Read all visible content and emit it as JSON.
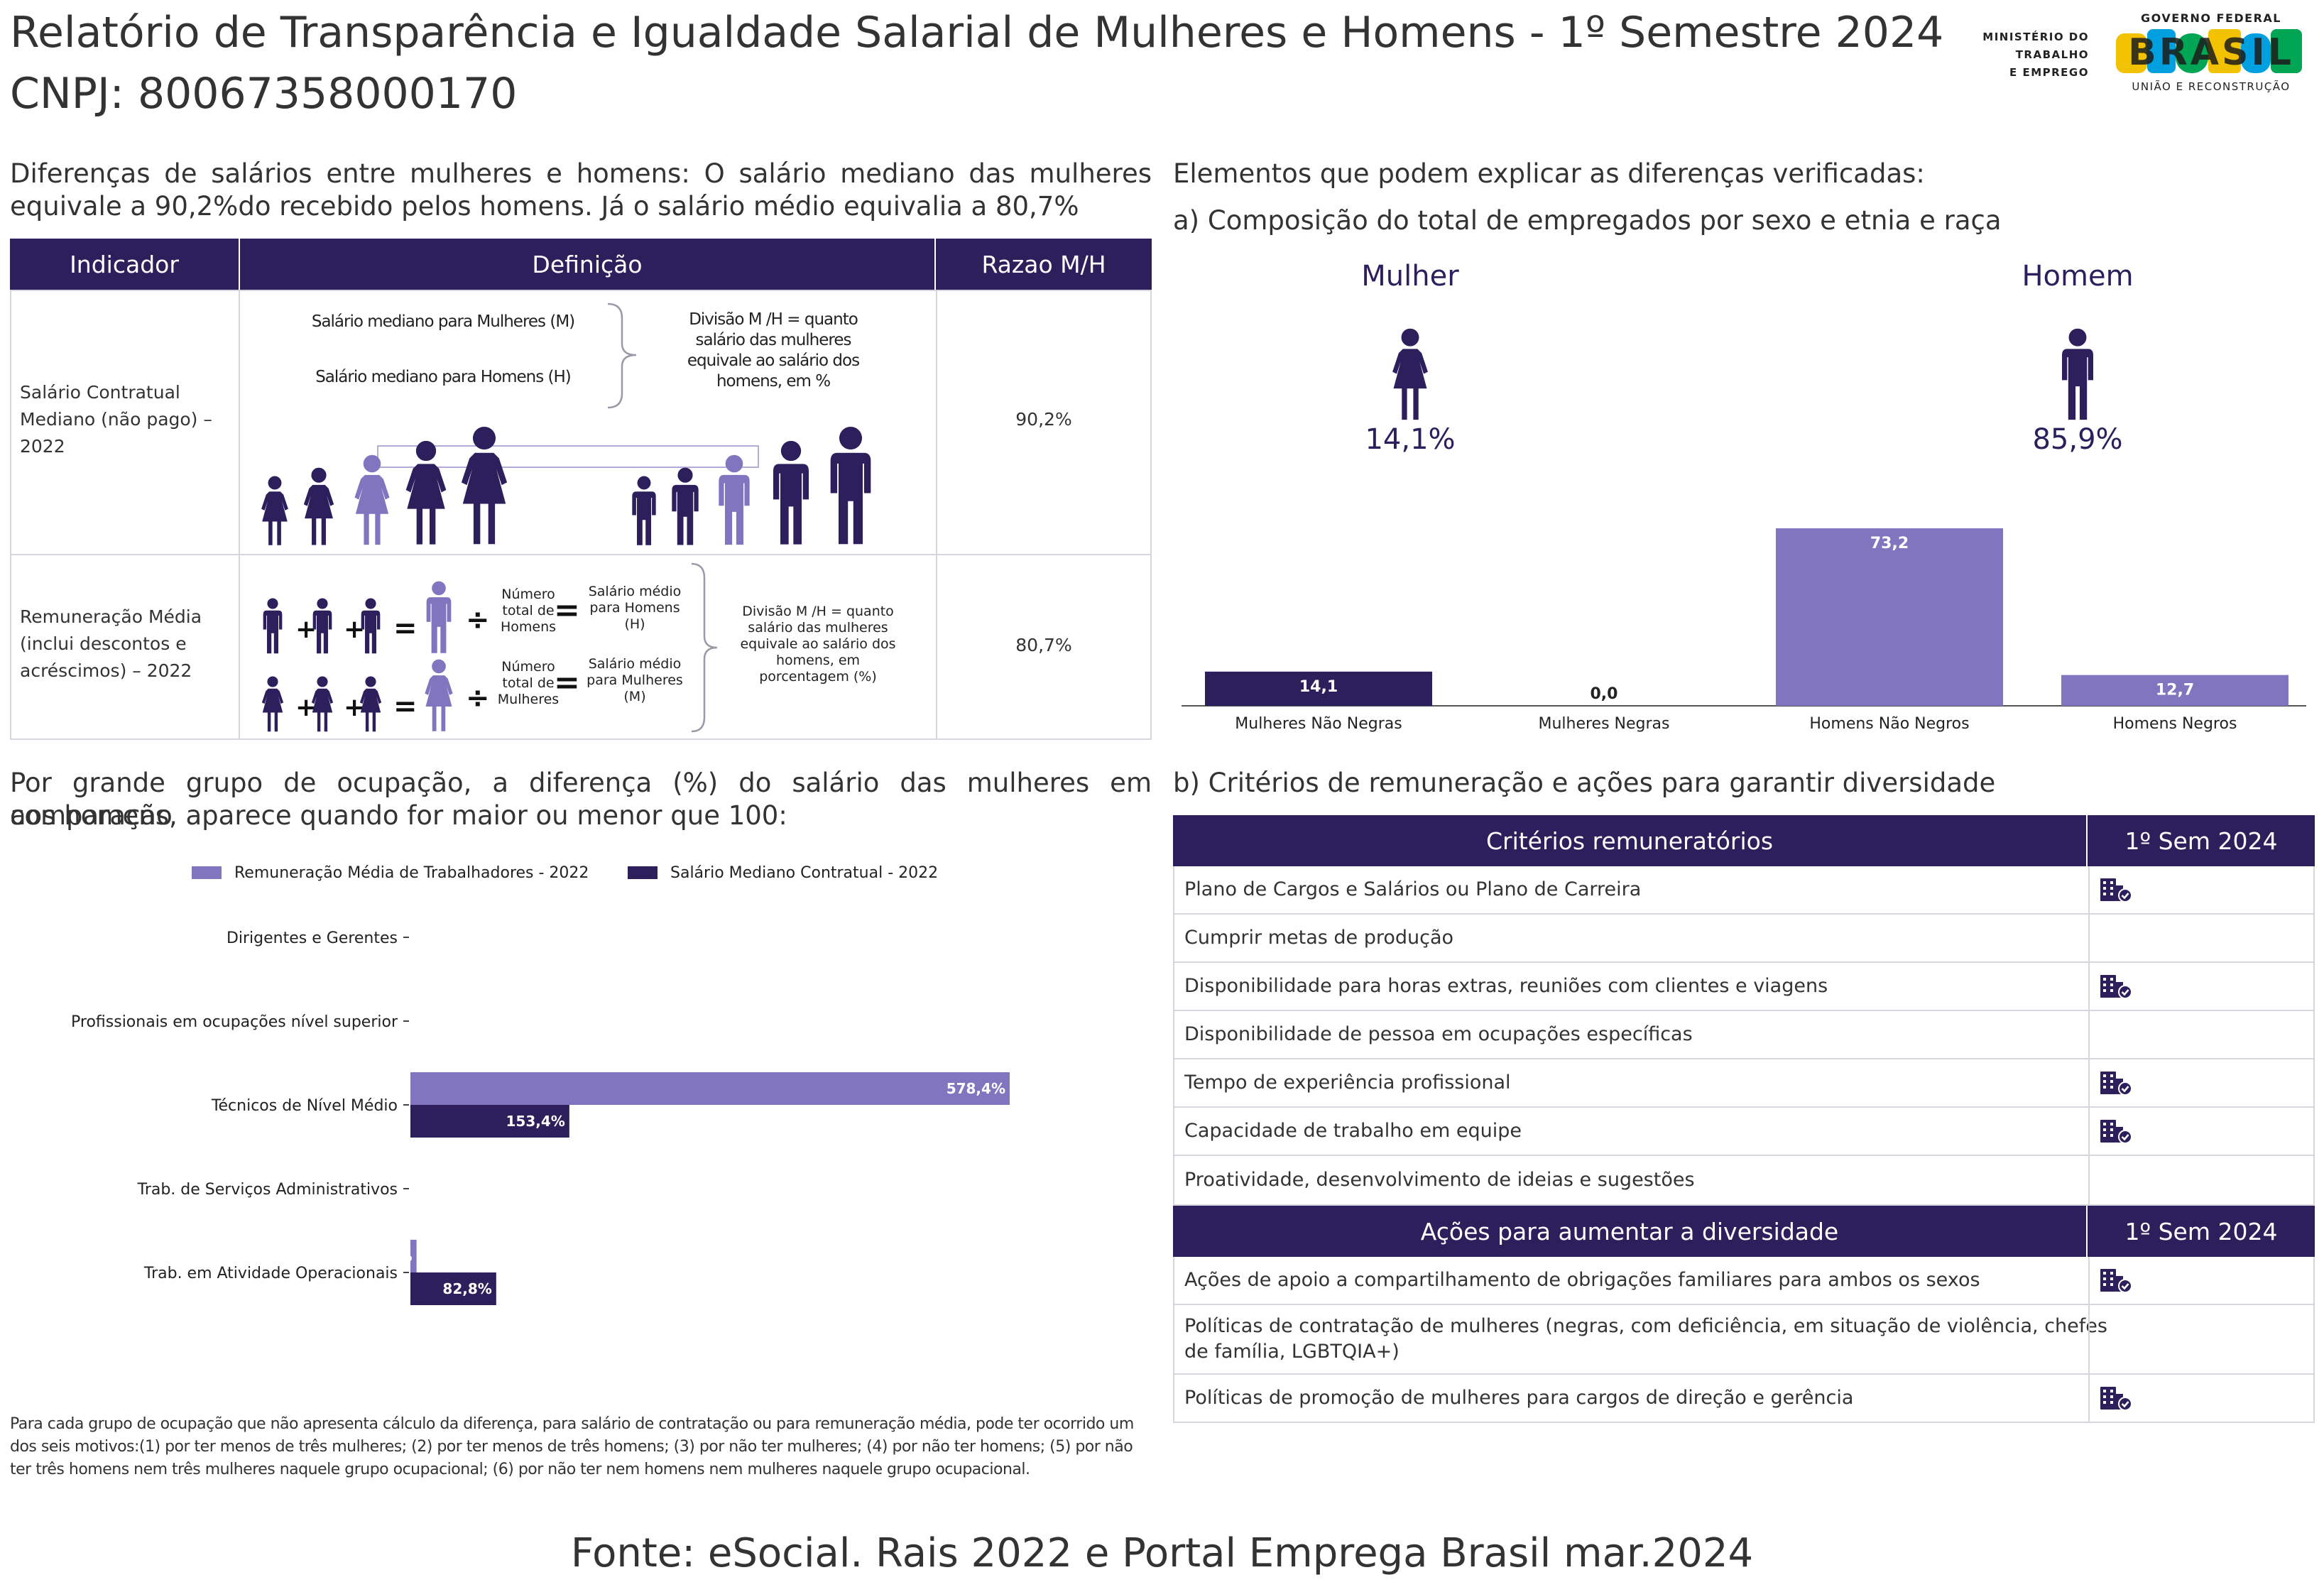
{
  "header": {
    "title": "Relatório de Transparência e Igualdade Salarial de Mulheres e Homens - 1º Semestre 2024",
    "cnpj": "CNPJ: 80067358000170",
    "ministry_logo": [
      "MINISTÉRIO DO",
      "TRABALHO",
      "E EMPREGO"
    ],
    "gov_logo_top": "GOVERNO FEDERAL",
    "gov_logo_word": "BRASIL",
    "gov_logo_bottom": "UNIÃO E RECONSTRUÇÃO"
  },
  "differences": {
    "line1": "Diferenças de salários entre mulheres e homens: O salário mediano das mulheres",
    "line2": "equivale a 90,2%do recebido pelos homens. Já o salário médio equivalia a 80,7%",
    "table": {
      "headers": [
        "Indicador",
        "Definição",
        "Razao M/H"
      ],
      "row1": {
        "indicator": "Salário Contratual Mediano (não pago) – 2022",
        "women_label": "Salário mediano para Mulheres (M)",
        "men_label": "Salário mediano para Homens (H)",
        "division": "Divisão M /H = quanto salário das mulheres equivale ao salário dos homens, em %",
        "ratio": "90,2%"
      },
      "row2": {
        "indicator": "Remuneração Média (inclui descontos e acréscimos) – 2022",
        "num_men": "Número total de Homens",
        "avg_men": "Salário médio para Homens (H)",
        "num_women": "Número total de Mulheres",
        "avg_women": "Salário médio para Mulheres (M)",
        "division": "Divisão M /H = quanto salário das mulheres equivale ao salário dos homens, em porcentagem (%)",
        "ratio": "80,7%"
      }
    }
  },
  "elements": {
    "heading": "Elementos que podem explicar as diferenças verificadas:",
    "sub_a": "a) Composição do total de empregados por sexo e etnia e raça",
    "woman_label": "Mulher",
    "woman_pct": "14,1%",
    "man_label": "Homem",
    "man_pct": "85,9%"
  },
  "occupation": {
    "line1": "Por grande grupo de ocupação, a diferença (%) do salário das mulheres em comparação",
    "line2": "aos homens, aparece quando for maior ou menor que 100:"
  },
  "chart_data": [
    {
      "type": "bar",
      "categories": [
        "Mulheres Não Negras",
        "Mulheres Negras",
        "Homens Não Negros",
        "Homens Negros"
      ],
      "values": [
        14.1,
        0.0,
        73.2,
        12.7
      ],
      "value_labels": [
        "14,1",
        "0,0",
        "73,2",
        "12,7"
      ],
      "colors": [
        "#2c1f5c",
        "#2c1f5c",
        "#8175bf",
        "#8175bf"
      ]
    },
    {
      "type": "bar",
      "orientation": "horizontal",
      "categories": [
        "Dirigentes e Gerentes",
        "Profissionais em ocupações nível superior",
        "Técnicos de Nível Médio",
        "Trab. de Serviços Administrativos",
        "Trab. em Atividade Operacionais"
      ],
      "series": [
        {
          "name": "Remuneração Média de Trabalhadores - 2022",
          "values": [
            null,
            null,
            578.4,
            null,
            5.9
          ],
          "labels": [
            "",
            "",
            "578,4%",
            "",
            "5,9%"
          ],
          "color": "#8175bf"
        },
        {
          "name": "Salário Mediano Contratual - 2022",
          "values": [
            null,
            null,
            153.4,
            null,
            82.8
          ],
          "labels": [
            "",
            "",
            "153,4%",
            "",
            "82,8%"
          ],
          "color": "#2c1f5c"
        }
      ],
      "legend": "top"
    }
  ],
  "criteria": {
    "sub_b": "b) Critérios de remuneração e ações para garantir diversidade",
    "header": "Critérios remuneratórios",
    "period": "1º Sem 2024",
    "items": [
      {
        "label": "Plano de Cargos e Salários ou Plano de Carreira",
        "checked": true
      },
      {
        "label": "Cumprir metas de produção",
        "checked": false
      },
      {
        "label": "Disponibilidade para horas extras, reuniões com clientes e viagens",
        "checked": true
      },
      {
        "label": "Disponibilidade de pessoa em ocupações específicas",
        "checked": false
      },
      {
        "label": "Tempo de experiência profissional",
        "checked": true
      },
      {
        "label": "Capacidade de trabalho em equipe",
        "checked": true
      },
      {
        "label": "Proatividade, desenvolvimento de ideias e sugestões",
        "checked": false
      }
    ]
  },
  "actions": {
    "header": "Ações para aumentar a diversidade",
    "period": "1º Sem 2024",
    "items": [
      {
        "label": "Ações de apoio a compartilhamento de obrigações familiares para ambos os sexos",
        "checked": true
      },
      {
        "label": "Políticas de contratação de mulheres (negras, com deficiência, em situação de violência, chefes de família, LGBTQIA+)",
        "checked": false
      },
      {
        "label": "Políticas de promoção de mulheres para cargos de direção e gerência",
        "checked": true
      }
    ]
  },
  "footnote": "Para cada grupo de ocupação que não apresenta cálculo da diferença, para salário de contratação ou para remuneração média, pode ter ocorrido um dos seis motivos:(1) por ter menos de três mulheres; (2) por ter menos de três homens; (3) por não ter mulheres; (4) por não ter homens; (5) por não ter três homens nem três mulheres naquele grupo ocupacional; (6) por não ter nem homens nem mulheres naquele grupo ocupacional.",
  "source": "Fonte: eSocial. Rais 2022 e Portal Emprega Brasil mar.2024",
  "colors": {
    "dark": "#2c1f5c",
    "light": "#8175bf",
    "border": "#d6d6de"
  }
}
